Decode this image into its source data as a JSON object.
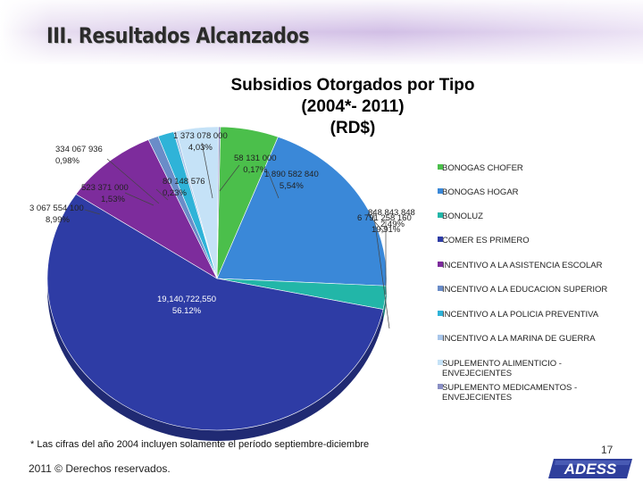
{
  "slide": {
    "title": "III. Resultados  Alcanzados",
    "footnote": "* Las cifras del año 2004 incluyen solamente el período septiembre-diciembre",
    "copyright": "2011 © Derechos reservados.",
    "page_number": "17",
    "logo_text": "ADESS"
  },
  "chart_data": {
    "type": "pie",
    "title_lines": [
      "Subsidios Otorgados por Tipo",
      "(2004*- 2011)",
      "(RD$)"
    ],
    "legend_position": "right",
    "slices": [
      {
        "name": "BONOGAS CHOFER",
        "value": 1890582840,
        "value_label": "1 890 582 840",
        "percent_label": "5,54%",
        "color": "#4bbf4b"
      },
      {
        "name": "BONOGAS HOGAR",
        "value": 6791258160,
        "value_label": "6 791 258 160",
        "percent_label": "19,91%",
        "color": "#3a88d8"
      },
      {
        "name": "BONOLUZ",
        "value": 848843848,
        "value_label": "848 843 848",
        "percent_label": "2,49%",
        "color": "#22b6a8"
      },
      {
        "name": "COMER ES PRIMERO",
        "value": 19140722550,
        "value_label": "19,140,722,550",
        "percent_label": "56.12%",
        "color": "#2e3ca5"
      },
      {
        "name": "INCENTIVO A LA  ASISTENCIA ESCOLAR",
        "value": 3067554100,
        "value_label": "3 067 554 100",
        "percent_label": "8,99%",
        "color": "#7d2c9c"
      },
      {
        "name": "INCENTIVO A LA EDUCACION SUPERIOR",
        "value": 334067936,
        "value_label": "334 067 936",
        "percent_label": "0,98%",
        "color": "#6a8cc8"
      },
      {
        "name": "INCENTIVO A LA POLICIA PREVENTIVA",
        "value": 523371000,
        "value_label": "523 371 000",
        "percent_label": "1,53%",
        "color": "#2fb3d8"
      },
      {
        "name": "INCENTIVO A LA MARINA DE GUERRA",
        "value": 80148576,
        "value_label": "80 148 576",
        "percent_label": "0,23%",
        "color": "#a9c6ea"
      },
      {
        "name": "SUPLEMENTO ALIMENTICIO - ENVEJECIENTES",
        "value": 1373078000,
        "value_label": "1 373 078 000",
        "percent_label": "4,03%",
        "color": "#c5e2f7"
      },
      {
        "name": "SUPLEMENTO MEDICAMENTOS - ENVEJECIENTES",
        "value": 58131000,
        "value_label": "58 131 000",
        "percent_label": "0,17%",
        "color": "#8a8fc4"
      }
    ]
  }
}
